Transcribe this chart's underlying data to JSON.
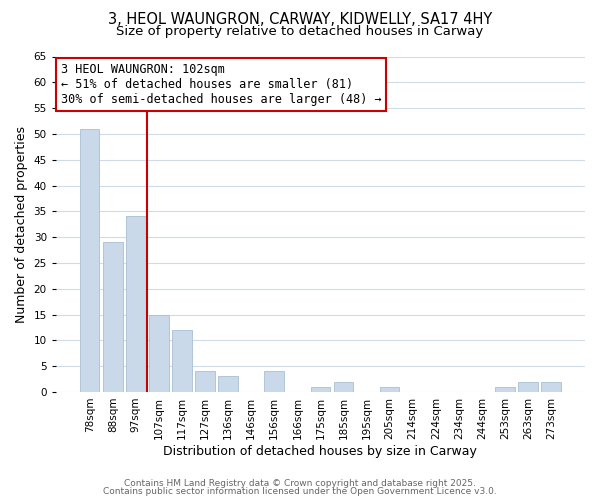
{
  "title_line1": "3, HEOL WAUNGRON, CARWAY, KIDWELLY, SA17 4HY",
  "title_line2": "Size of property relative to detached houses in Carway",
  "xlabel": "Distribution of detached houses by size in Carway",
  "ylabel": "Number of detached properties",
  "categories": [
    "78sqm",
    "88sqm",
    "97sqm",
    "107sqm",
    "117sqm",
    "127sqm",
    "136sqm",
    "146sqm",
    "156sqm",
    "166sqm",
    "175sqm",
    "185sqm",
    "195sqm",
    "205sqm",
    "214sqm",
    "224sqm",
    "234sqm",
    "244sqm",
    "253sqm",
    "263sqm",
    "273sqm"
  ],
  "values": [
    51,
    29,
    34,
    15,
    12,
    4,
    3,
    0,
    4,
    0,
    1,
    2,
    0,
    1,
    0,
    0,
    0,
    0,
    1,
    2,
    2
  ],
  "bar_color": "#c9d9ea",
  "bar_edge_color": "#a8bfd4",
  "vline_x": 2.5,
  "vline_color": "#cc0000",
  "annotation_text": "3 HEOL WAUNGRON: 102sqm\n← 51% of detached houses are smaller (81)\n30% of semi-detached houses are larger (48) →",
  "annotation_box_color": "white",
  "annotation_box_edge_color": "#cc0000",
  "ylim": [
    0,
    65
  ],
  "yticks": [
    0,
    5,
    10,
    15,
    20,
    25,
    30,
    35,
    40,
    45,
    50,
    55,
    60,
    65
  ],
  "footer_line1": "Contains HM Land Registry data © Crown copyright and database right 2025.",
  "footer_line2": "Contains public sector information licensed under the Open Government Licence v3.0.",
  "bg_color": "#ffffff",
  "grid_color": "#cfdce8",
  "title_fontsize": 10.5,
  "subtitle_fontsize": 9.5,
  "axis_label_fontsize": 9,
  "tick_fontsize": 7.5,
  "annotation_fontsize": 8.5,
  "footer_fontsize": 6.5
}
